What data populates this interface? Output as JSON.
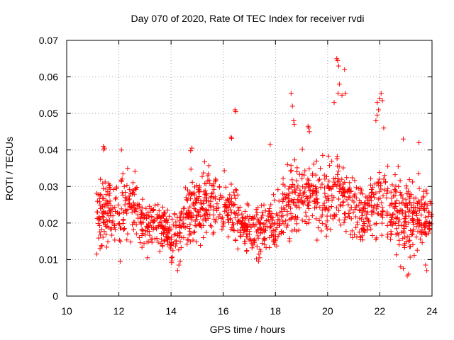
{
  "chart_data": {
    "type": "scatter",
    "title": "Day 070 of 2020, Rate Of TEC Index for receiver rvdi",
    "xlabel": "GPS time / hours",
    "ylabel": "ROTI / TECUs",
    "xlim": [
      10,
      24
    ],
    "ylim": [
      0,
      0.07
    ],
    "x_ticks": [
      10,
      12,
      14,
      16,
      18,
      20,
      22,
      24
    ],
    "x_tick_labels": [
      "10",
      "12",
      "14",
      "16",
      "18",
      "20",
      "22",
      "24"
    ],
    "y_ticks": [
      0,
      0.01,
      0.02,
      0.03,
      0.04,
      0.05,
      0.06,
      0.07
    ],
    "y_tick_labels": [
      "0",
      "0.01",
      "0.02",
      "0.03",
      "0.04",
      "0.05",
      "0.06",
      "0.07"
    ],
    "grid": true,
    "marker": "+",
    "color": "#ff0000",
    "series": [
      {
        "name": "ROTI",
        "x_start": 11.1,
        "x_end": 24.0,
        "point_count": 1500,
        "profile": [
          {
            "x": 11.1,
            "mean": 0.022,
            "spread": 0.007
          },
          {
            "x": 11.5,
            "mean": 0.024,
            "spread": 0.009
          },
          {
            "x": 12.0,
            "mean": 0.022,
            "spread": 0.008
          },
          {
            "x": 12.5,
            "mean": 0.025,
            "spread": 0.007
          },
          {
            "x": 13.0,
            "mean": 0.02,
            "spread": 0.007
          },
          {
            "x": 13.5,
            "mean": 0.02,
            "spread": 0.006
          },
          {
            "x": 14.0,
            "mean": 0.016,
            "spread": 0.005
          },
          {
            "x": 14.5,
            "mean": 0.022,
            "spread": 0.008
          },
          {
            "x": 15.0,
            "mean": 0.025,
            "spread": 0.008
          },
          {
            "x": 15.5,
            "mean": 0.026,
            "spread": 0.008
          },
          {
            "x": 16.0,
            "mean": 0.024,
            "spread": 0.007
          },
          {
            "x": 16.5,
            "mean": 0.022,
            "spread": 0.007
          },
          {
            "x": 17.0,
            "mean": 0.018,
            "spread": 0.005
          },
          {
            "x": 17.5,
            "mean": 0.019,
            "spread": 0.006
          },
          {
            "x": 18.0,
            "mean": 0.019,
            "spread": 0.006
          },
          {
            "x": 18.5,
            "mean": 0.026,
            "spread": 0.009
          },
          {
            "x": 19.0,
            "mean": 0.029,
            "spread": 0.009
          },
          {
            "x": 19.5,
            "mean": 0.028,
            "spread": 0.008
          },
          {
            "x": 20.0,
            "mean": 0.026,
            "spread": 0.009
          },
          {
            "x": 20.5,
            "mean": 0.03,
            "spread": 0.01
          },
          {
            "x": 21.0,
            "mean": 0.024,
            "spread": 0.008
          },
          {
            "x": 21.5,
            "mean": 0.022,
            "spread": 0.007
          },
          {
            "x": 22.0,
            "mean": 0.027,
            "spread": 0.009
          },
          {
            "x": 22.5,
            "mean": 0.024,
            "spread": 0.009
          },
          {
            "x": 23.0,
            "mean": 0.022,
            "spread": 0.009
          },
          {
            "x": 23.5,
            "mean": 0.021,
            "spread": 0.008
          },
          {
            "x": 24.0,
            "mean": 0.022,
            "spread": 0.006
          }
        ],
        "notable_points": [
          [
            20.35,
            0.065
          ],
          [
            20.38,
            0.0645
          ],
          [
            20.42,
            0.063
          ],
          [
            20.65,
            0.062
          ],
          [
            20.45,
            0.058
          ],
          [
            20.4,
            0.0555
          ],
          [
            20.68,
            0.0555
          ],
          [
            20.55,
            0.055
          ],
          [
            20.25,
            0.053
          ],
          [
            18.6,
            0.0555
          ],
          [
            18.65,
            0.052
          ],
          [
            16.45,
            0.051
          ],
          [
            16.48,
            0.0505
          ],
          [
            22.05,
            0.0555
          ],
          [
            22.0,
            0.054
          ],
          [
            21.9,
            0.053
          ],
          [
            22.1,
            0.0535
          ],
          [
            21.95,
            0.051
          ],
          [
            21.9,
            0.0495
          ],
          [
            19.25,
            0.0465
          ],
          [
            19.28,
            0.046
          ],
          [
            19.3,
            0.045
          ],
          [
            18.7,
            0.048
          ],
          [
            18.72,
            0.047
          ],
          [
            16.3,
            0.0435
          ],
          [
            16.32,
            0.0432
          ],
          [
            21.85,
            0.048
          ],
          [
            22.15,
            0.046
          ],
          [
            11.4,
            0.041
          ],
          [
            11.45,
            0.0405
          ],
          [
            11.42,
            0.04
          ],
          [
            12.1,
            0.04
          ],
          [
            14.8,
            0.0405
          ],
          [
            14.75,
            0.0398
          ],
          [
            17.8,
            0.0415
          ],
          [
            22.9,
            0.043
          ],
          [
            23.5,
            0.042
          ],
          [
            14.3,
            0.0085
          ],
          [
            14.25,
            0.007
          ],
          [
            14.35,
            0.0095
          ],
          [
            23.05,
            0.0055
          ],
          [
            23.1,
            0.006
          ],
          [
            22.9,
            0.0075
          ],
          [
            22.8,
            0.008
          ],
          [
            23.75,
            0.0085
          ],
          [
            23.8,
            0.007
          ],
          [
            12.05,
            0.0095
          ],
          [
            13.1,
            0.0105
          ],
          [
            17.35,
            0.0095
          ],
          [
            17.4,
            0.0105
          ],
          [
            16.9,
            0.0125
          ],
          [
            11.15,
            0.0115
          ]
        ]
      }
    ]
  }
}
